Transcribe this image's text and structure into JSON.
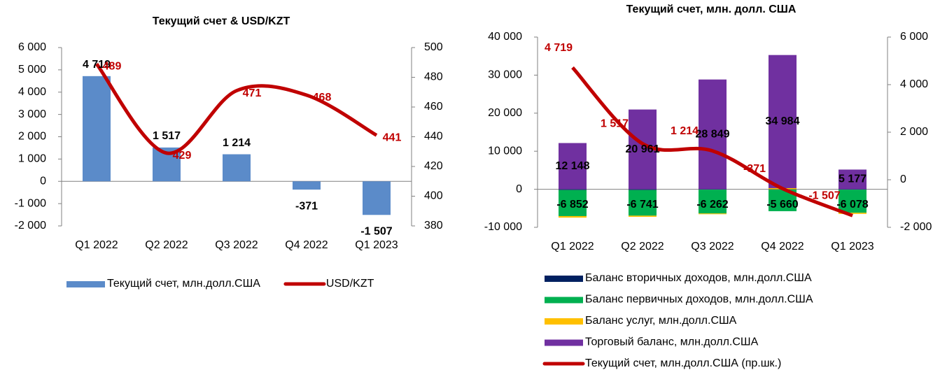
{
  "chart_data": [
    {
      "type": "bar",
      "title": "Текущий счет & USD/KZT",
      "categories": [
        "Q1 2022",
        "Q2 2022",
        "Q3 2022",
        "Q4 2022",
        "Q1 2023"
      ],
      "series": [
        {
          "name": "Текущий счет, млн.долл.США",
          "color": "#5b8bc9",
          "values": [
            4719,
            1517,
            1214,
            -371,
            -1507
          ],
          "value_labels": [
            "4 719",
            "1 517",
            "1 214",
            "-371",
            "-1 507"
          ]
        },
        {
          "name": "USD/KZT",
          "type": "line",
          "axis": "y2",
          "color": "#c00000",
          "values": [
            489,
            429,
            471,
            468,
            441
          ]
        }
      ],
      "ylim": [
        -2000,
        6000
      ],
      "yticks": [
        {
          "value": -2000,
          "label": "-2 000"
        },
        {
          "value": -1000,
          "label": "-1 000"
        },
        0,
        {
          "value": 1000,
          "label": "1 000"
        },
        {
          "value": 2000,
          "label": "2 000"
        },
        {
          "value": 3000,
          "label": "3 000"
        },
        {
          "value": 4000,
          "label": "4 000"
        },
        {
          "value": 5000,
          "label": "5 000"
        },
        {
          "value": 6000,
          "label": "6 000"
        }
      ],
      "y2lim": [
        380,
        500
      ],
      "y2ticks": [
        380,
        400,
        420,
        440,
        460,
        480,
        500
      ],
      "legend": "bottom"
    },
    {
      "type": "bar",
      "stacked": true,
      "title": "Текущий счет, млн. долл. США",
      "categories": [
        "Q1 2022",
        "Q2 2022",
        "Q3 2022",
        "Q4 2022",
        "Q1 2023"
      ],
      "series": [
        {
          "name": "Баланс вторичных доходов,  млн.долл.США",
          "color": "#002060",
          "values": [
            -200,
            -200,
            -100,
            -100,
            -100
          ]
        },
        {
          "name": "Баланс первичных доходов,  млн.долл.США",
          "color": "#00b050",
          "values": [
            -6852,
            -6741,
            -6262,
            -5660,
            -6078
          ],
          "value_labels": [
            "-6 852",
            "-6 741",
            "-6 262",
            "-5 660",
            "-6 078"
          ]
        },
        {
          "name": "Баланс услуг, млн.долл.США",
          "color": "#ffc000",
          "values": [
            -400,
            -300,
            -200,
            300,
            -300
          ]
        },
        {
          "name": "Торговый баланс, млн.долл.США",
          "color": "#7030a0",
          "values": [
            12148,
            20961,
            28849,
            34984,
            5177
          ],
          "value_labels": [
            "12 148",
            "20 961",
            "28 849",
            "34 984",
            "5 177"
          ]
        },
        {
          "name": "Текущий счет,  млн.долл.США (пр.шк.)",
          "type": "line",
          "axis": "y2",
          "color": "#c00000",
          "values": [
            4719,
            1517,
            1214,
            -371,
            -1507
          ],
          "value_labels": [
            "4 719",
            "1 517",
            "1 214",
            "-371",
            "-1 507"
          ]
        }
      ],
      "ylim": [
        -10000,
        40000
      ],
      "yticks": [
        {
          "value": -10000,
          "label": "-10 000"
        },
        0,
        {
          "value": 10000,
          "label": "10 000"
        },
        {
          "value": 20000,
          "label": "20 000"
        },
        {
          "value": 30000,
          "label": "30 000"
        },
        {
          "value": 40000,
          "label": "40 000"
        }
      ],
      "y2lim": [
        -2000,
        6000
      ],
      "y2ticks": [
        {
          "value": -2000,
          "label": "-2 000"
        },
        0,
        {
          "value": 2000,
          "label": "2 000"
        },
        {
          "value": 4000,
          "label": "4 000"
        },
        {
          "value": 6000,
          "label": "6 000"
        }
      ],
      "legend": "bottom"
    }
  ]
}
